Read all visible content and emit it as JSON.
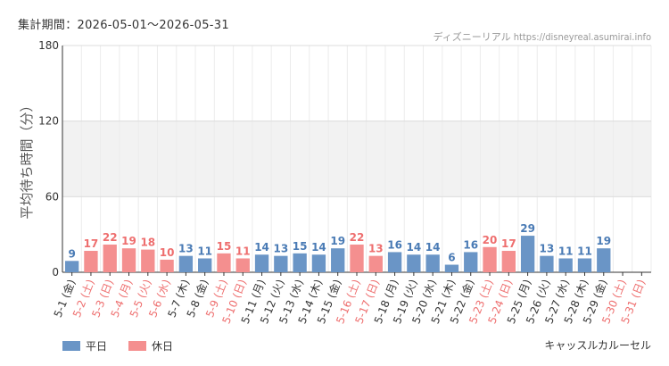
{
  "header": {
    "period_label": "集計期間：2026-05-01〜2026-05-31",
    "credit": "ディズニーリアル https://disneyreal.asumirai.info",
    "attraction": "キャッスルカルーセル"
  },
  "legend": [
    {
      "label": "平日",
      "color": "#6a95c6"
    },
    {
      "label": "休日",
      "color": "#f48f8f"
    }
  ],
  "chart_data": {
    "type": "bar",
    "ylabel": "平均待ち時間（分）",
    "ylim": [
      0,
      180
    ],
    "yticks": [
      0,
      60,
      120,
      180
    ],
    "band": [
      60,
      120
    ],
    "categories": [
      "5-1 (金)",
      "5-2 (土)",
      "5-3 (日)",
      "5-4 (月)",
      "5-5 (火)",
      "5-6 (水)",
      "5-7 (木)",
      "5-8 (金)",
      "5-9 (土)",
      "5-10 (日)",
      "5-11 (月)",
      "5-12 (火)",
      "5-13 (水)",
      "5-14 (木)",
      "5-15 (金)",
      "5-16 (土)",
      "5-17 (日)",
      "5-18 (月)",
      "5-19 (火)",
      "5-20 (水)",
      "5-21 (木)",
      "5-22 (金)",
      "5-23 (土)",
      "5-24 (日)",
      "5-25 (月)",
      "5-26 (火)",
      "5-27 (水)",
      "5-28 (木)",
      "5-29 (金)",
      "5-30 (土)",
      "5-31 (日)"
    ],
    "values": [
      9,
      17,
      22,
      19,
      18,
      10,
      13,
      11,
      15,
      11,
      14,
      13,
      15,
      14,
      19,
      22,
      13,
      16,
      14,
      14,
      6,
      16,
      20,
      17,
      29,
      13,
      11,
      11,
      19,
      null,
      null
    ],
    "holiday": [
      false,
      true,
      true,
      true,
      true,
      true,
      false,
      false,
      true,
      true,
      false,
      false,
      false,
      false,
      false,
      true,
      true,
      false,
      false,
      false,
      false,
      false,
      true,
      true,
      false,
      false,
      false,
      false,
      false,
      true,
      true
    ],
    "colors": {
      "weekday": "#6a95c6",
      "holiday": "#f48f8f",
      "weekday_text": "#4a7bb5",
      "holiday_text": "#ee6e6e"
    }
  }
}
